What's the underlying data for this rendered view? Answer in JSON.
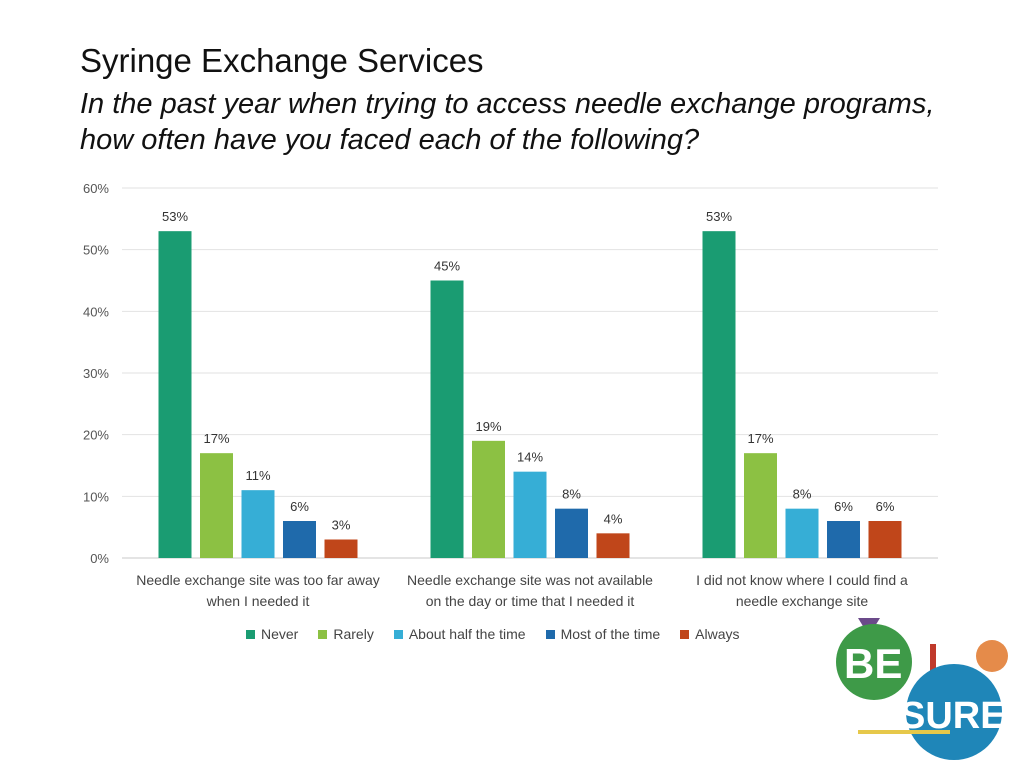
{
  "chart_data": {
    "type": "bar",
    "title": "Syringe Exchange Services",
    "subtitle": "In the past year when trying to access needle exchange programs, how often have you faced each of the following?",
    "categories": [
      [
        "Needle exchange site was too far away",
        "when I needed it"
      ],
      [
        "Needle exchange site was not available",
        "on the day or time that I needed it"
      ],
      [
        "I did not know where I could find a",
        "needle exchange site"
      ]
    ],
    "series": [
      {
        "name": "Never",
        "color": "#1a9c72",
        "values": [
          53,
          45,
          53
        ]
      },
      {
        "name": "Rarely",
        "color": "#8cc143",
        "values": [
          17,
          19,
          17
        ]
      },
      {
        "name": "About half the time",
        "color": "#36aed6",
        "values": [
          11,
          14,
          8
        ]
      },
      {
        "name": "Most of the time",
        "color": "#1f6aab",
        "values": [
          6,
          8,
          6
        ]
      },
      {
        "name": "Always",
        "color": "#c0461a",
        "values": [
          3,
          4,
          6
        ]
      }
    ],
    "ylim": [
      0,
      60
    ],
    "yticks": [
      "0%",
      "10%",
      "20%",
      "30%",
      "40%",
      "50%",
      "60%"
    ],
    "value_suffix": "%",
    "grid": true,
    "legend_position": "bottom"
  },
  "logo": {
    "text_top": "BE",
    "text_bottom": "SURE",
    "colors": {
      "green": "#3e9a48",
      "blue": "#1f86b8",
      "purple": "#6b4a8a",
      "orange": "#e58b4a",
      "red": "#c0392b",
      "yellow": "#e6c84a"
    }
  }
}
